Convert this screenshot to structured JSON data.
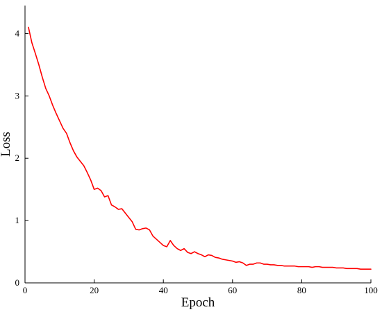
{
  "chart_data": {
    "type": "line",
    "xlabel": "Epoch",
    "ylabel": "Loss",
    "xlim": [
      0,
      100
    ],
    "ylim": [
      0,
      4.45
    ],
    "xticks": [
      0,
      20,
      40,
      60,
      80,
      100
    ],
    "yticks": [
      0,
      1,
      2,
      3,
      4
    ],
    "grid": false,
    "series": [
      {
        "color": "#ff0000",
        "x": [
          1,
          2,
          3,
          4,
          5,
          6,
          7,
          8,
          9,
          10,
          11,
          12,
          13,
          14,
          15,
          16,
          17,
          18,
          19,
          20,
          21,
          22,
          23,
          24,
          25,
          26,
          27,
          28,
          29,
          30,
          31,
          32,
          33,
          34,
          35,
          36,
          37,
          38,
          39,
          40,
          41,
          42,
          43,
          44,
          45,
          46,
          47,
          48,
          49,
          50,
          51,
          52,
          53,
          54,
          55,
          56,
          57,
          58,
          59,
          60,
          61,
          62,
          63,
          64,
          65,
          66,
          67,
          68,
          69,
          70,
          71,
          72,
          73,
          74,
          75,
          76,
          77,
          78,
          79,
          80,
          81,
          82,
          83,
          84,
          85,
          86,
          87,
          88,
          89,
          90,
          91,
          92,
          93,
          94,
          95,
          96,
          97,
          98,
          99,
          100
        ],
        "y": [
          4.1,
          3.85,
          3.68,
          3.5,
          3.3,
          3.12,
          3.0,
          2.85,
          2.72,
          2.6,
          2.48,
          2.4,
          2.25,
          2.12,
          2.02,
          1.95,
          1.88,
          1.77,
          1.65,
          1.5,
          1.52,
          1.48,
          1.38,
          1.4,
          1.25,
          1.22,
          1.18,
          1.19,
          1.12,
          1.05,
          0.98,
          0.86,
          0.85,
          0.87,
          0.88,
          0.85,
          0.75,
          0.7,
          0.65,
          0.6,
          0.58,
          0.68,
          0.6,
          0.55,
          0.52,
          0.55,
          0.49,
          0.47,
          0.5,
          0.47,
          0.45,
          0.42,
          0.45,
          0.44,
          0.41,
          0.4,
          0.38,
          0.37,
          0.36,
          0.35,
          0.33,
          0.34,
          0.32,
          0.28,
          0.3,
          0.3,
          0.32,
          0.32,
          0.3,
          0.3,
          0.29,
          0.29,
          0.28,
          0.28,
          0.27,
          0.27,
          0.27,
          0.27,
          0.26,
          0.26,
          0.26,
          0.26,
          0.25,
          0.26,
          0.26,
          0.25,
          0.25,
          0.25,
          0.25,
          0.24,
          0.24,
          0.24,
          0.23,
          0.23,
          0.23,
          0.23,
          0.22,
          0.22,
          0.22,
          0.22
        ]
      }
    ]
  }
}
